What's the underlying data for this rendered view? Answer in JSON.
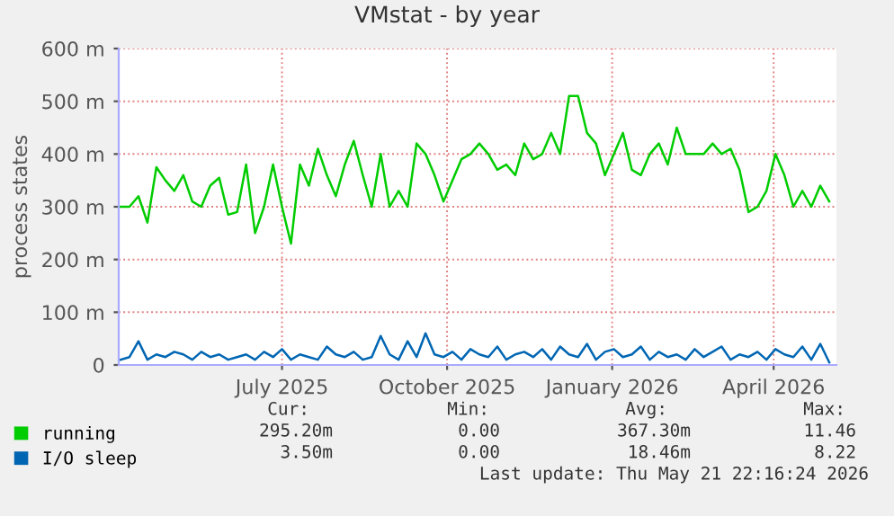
{
  "chart_data": {
    "type": "line",
    "title": "VMstat - by year",
    "ylabel": "process states",
    "x": [
      "2025-04-17",
      "2025-04-22",
      "2025-04-27",
      "2025-05-02",
      "2025-05-07",
      "2025-05-12",
      "2025-05-17",
      "2025-05-22",
      "2025-05-27",
      "2025-06-01",
      "2025-06-06",
      "2025-06-11",
      "2025-06-16",
      "2025-06-21",
      "2025-06-26",
      "2025-07-01",
      "2025-07-06",
      "2025-07-11",
      "2025-07-16",
      "2025-07-21",
      "2025-07-26",
      "2025-07-31",
      "2025-08-05",
      "2025-08-10",
      "2025-08-15",
      "2025-08-20",
      "2025-08-25",
      "2025-08-30",
      "2025-09-04",
      "2025-09-09",
      "2025-09-14",
      "2025-09-19",
      "2025-09-24",
      "2025-09-29",
      "2025-10-04",
      "2025-10-09",
      "2025-10-14",
      "2025-10-19",
      "2025-10-24",
      "2025-10-29",
      "2025-11-03",
      "2025-11-08",
      "2025-11-13",
      "2025-11-18",
      "2025-11-23",
      "2025-11-28",
      "2025-12-03",
      "2025-12-08",
      "2025-12-13",
      "2025-12-18",
      "2025-12-23",
      "2025-12-28",
      "2026-01-02",
      "2026-01-07",
      "2026-01-12",
      "2026-01-17",
      "2026-01-22",
      "2026-01-27",
      "2026-02-01",
      "2026-02-06",
      "2026-02-11",
      "2026-02-16",
      "2026-02-21",
      "2026-02-26",
      "2026-03-03",
      "2026-03-08",
      "2026-03-13",
      "2026-03-18",
      "2026-03-23",
      "2026-03-28",
      "2026-04-02",
      "2026-04-07",
      "2026-04-12",
      "2026-04-17",
      "2026-04-22",
      "2026-04-27",
      "2026-05-02",
      "2026-05-07",
      "2026-05-12",
      "2026-05-17"
    ],
    "series": [
      {
        "name": "running",
        "color": "#00cc00",
        "values": [
          300,
          300,
          320,
          270,
          375,
          350,
          330,
          360,
          310,
          300,
          340,
          355,
          285,
          290,
          380,
          250,
          300,
          380,
          300,
          230,
          380,
          340,
          410,
          360,
          320,
          380,
          425,
          360,
          300,
          400,
          300,
          330,
          300,
          420,
          400,
          360,
          310,
          350,
          390,
          400,
          420,
          400,
          370,
          380,
          360,
          420,
          390,
          400,
          440,
          400,
          510,
          510,
          440,
          420,
          360,
          400,
          440,
          370,
          360,
          400,
          420,
          380,
          450,
          400,
          400,
          400,
          420,
          400,
          410,
          370,
          290,
          300,
          330,
          400,
          360,
          300,
          330,
          300,
          340,
          310
        ]
      },
      {
        "name": "I/O sleep",
        "color": "#0066b3",
        "values": [
          10,
          15,
          45,
          10,
          20,
          15,
          25,
          20,
          10,
          25,
          15,
          20,
          10,
          15,
          20,
          10,
          25,
          15,
          30,
          10,
          20,
          15,
          10,
          35,
          20,
          15,
          25,
          10,
          15,
          55,
          20,
          10,
          45,
          15,
          60,
          20,
          15,
          25,
          10,
          30,
          20,
          15,
          35,
          10,
          20,
          25,
          15,
          30,
          10,
          35,
          20,
          15,
          40,
          10,
          25,
          30,
          15,
          20,
          35,
          10,
          25,
          15,
          20,
          10,
          30,
          15,
          25,
          35,
          10,
          20,
          15,
          25,
          10,
          30,
          20,
          15,
          35,
          10,
          40,
          5
        ]
      }
    ],
    "xlim": [
      "2025-04-16",
      "2026-05-21"
    ],
    "xticks": [
      {
        "value": "2025-07-16",
        "label": "July 2025"
      },
      {
        "value": "2025-10-16",
        "label": "October 2025"
      },
      {
        "value": "2026-01-16",
        "label": "January 2026"
      },
      {
        "value": "2026-04-16",
        "label": "April 2026"
      }
    ],
    "ylim": [
      0,
      600
    ],
    "yticks": [
      0,
      {
        "value": 100,
        "label": "100 m"
      },
      {
        "value": 200,
        "label": "200 m"
      },
      {
        "value": 300,
        "label": "300 m"
      },
      {
        "value": 400,
        "label": "400 m"
      },
      {
        "value": 500,
        "label": "500 m"
      },
      {
        "value": 600,
        "label": "600 m"
      }
    ],
    "grid": true,
    "legend": "bottom",
    "marker": "none",
    "line_style": "solid",
    "annotations": [
      "Cur:",
      "Min:",
      "Avg:",
      "Max:",
      "295.20m",
      "0.00",
      "367.30m",
      "11.46",
      "3.50m",
      "0.00",
      "18.46m",
      "8.22",
      "Last update: Thu May 21 22:16:24 2026"
    ]
  }
}
